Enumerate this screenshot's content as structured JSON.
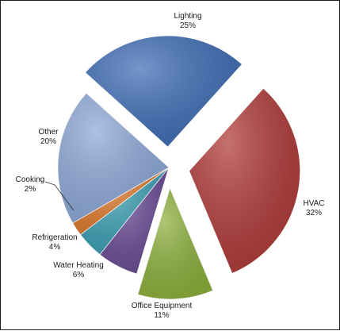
{
  "chart_data": {
    "type": "pie",
    "exploded": true,
    "categories": [
      "HVAC",
      "Office Equipment",
      "Water Heating",
      "Refrigeration",
      "Cooking",
      "Other",
      "Lighting"
    ],
    "values": [
      32,
      11,
      6,
      4,
      2,
      20,
      25
    ],
    "value_labels": [
      "32%",
      "11%",
      "6%",
      "4%",
      "2%",
      "20%",
      "25%"
    ],
    "colors": [
      "#b03a38",
      "#8db13c",
      "#6a4b95",
      "#3a9fb3",
      "#de7a2c",
      "#8ea9d8",
      "#3f6db6"
    ],
    "exploded_categories": [
      "Lighting",
      "HVAC",
      "Office Equipment"
    ],
    "legend": "none"
  }
}
